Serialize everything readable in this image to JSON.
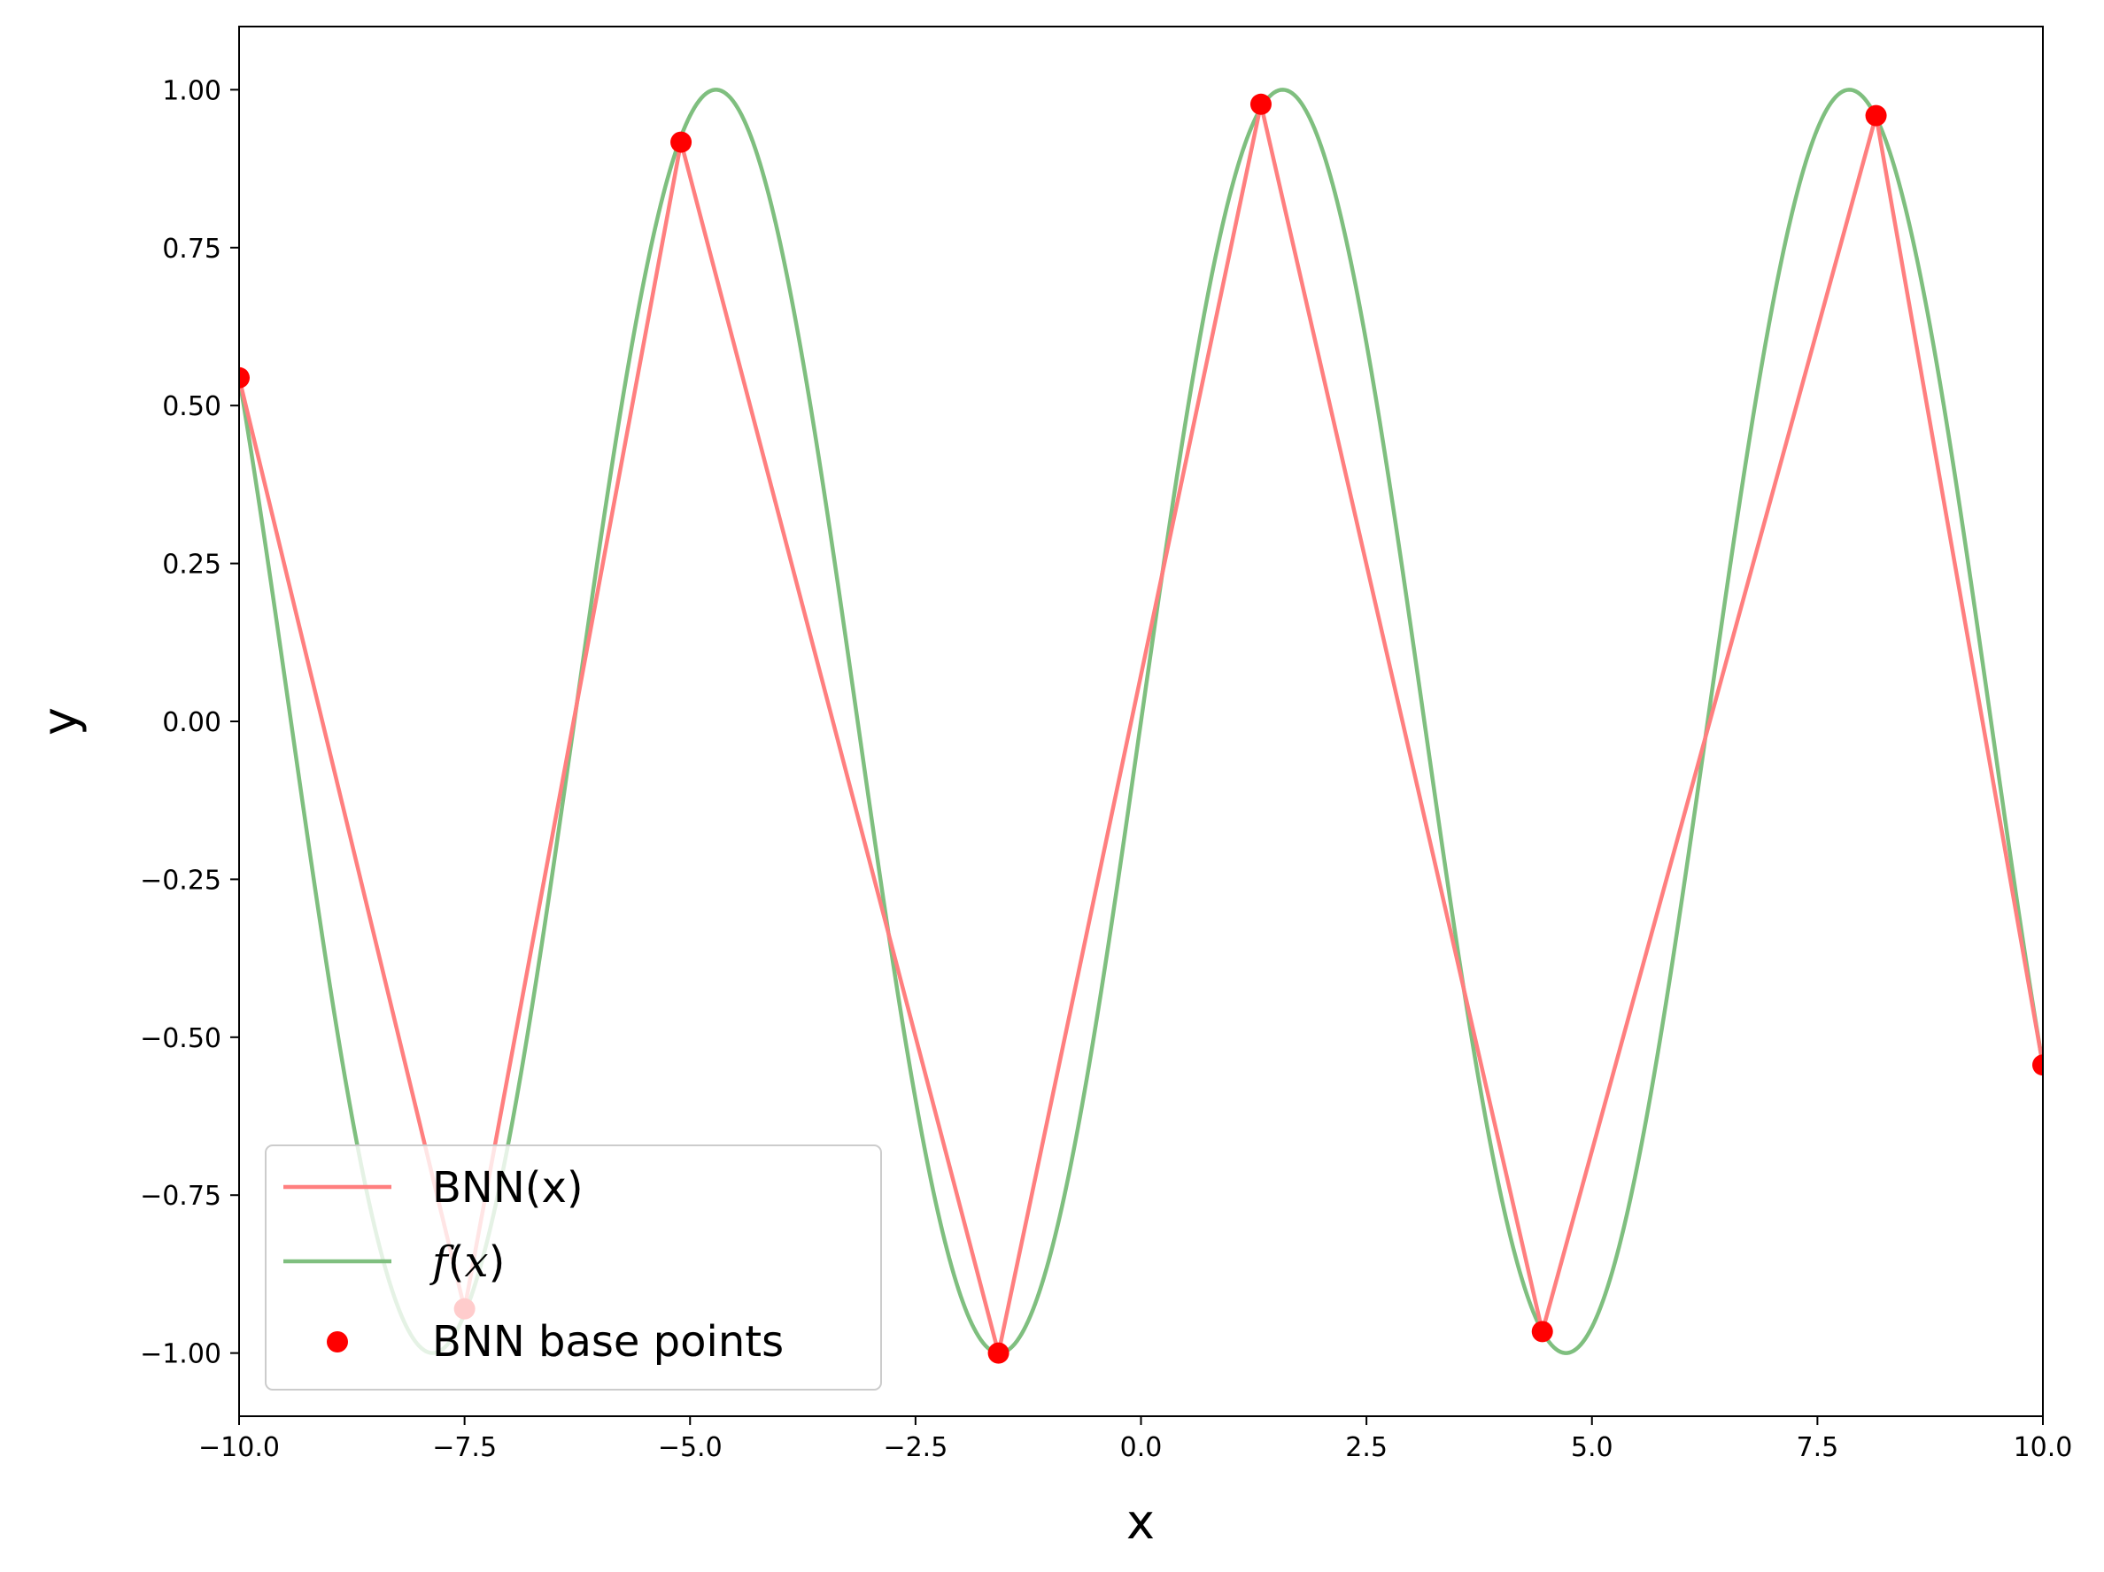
{
  "chart_data": {
    "type": "line",
    "xlabel": "x",
    "ylabel": "y",
    "xlim": [
      -10,
      10
    ],
    "ylim": [
      -1.1,
      1.1
    ],
    "x_ticks": [
      -10.0,
      -7.5,
      -5.0,
      -2.5,
      0.0,
      2.5,
      5.0,
      7.5,
      10.0
    ],
    "x_tick_labels": [
      "−10.0",
      "−7.5",
      "−5.0",
      "−2.5",
      "0.0",
      "2.5",
      "5.0",
      "7.5",
      "10.0"
    ],
    "y_ticks": [
      1.0,
      0.75,
      0.5,
      0.25,
      0.0,
      -0.25,
      -0.5,
      -0.75,
      -1.0
    ],
    "y_tick_labels": [
      "1.00",
      "0.75",
      "0.50",
      "0.25",
      "0.00",
      "−0.25",
      "−0.50",
      "−0.75",
      "−1.00"
    ],
    "grid": false,
    "legend_position": "lower-left",
    "series": [
      {
        "name": "BNN(x)",
        "kind": "line",
        "color": "#ff7f7f",
        "x": [
          -10.0,
          -7.5,
          -5.1,
          -1.58,
          1.33,
          4.45,
          8.15,
          10.0
        ],
        "y": [
          0.544,
          -0.93,
          0.917,
          -1.0,
          0.977,
          -0.966,
          0.959,
          -0.544
        ]
      },
      {
        "name": "f(x)",
        "kind": "function",
        "function": "sin(x)",
        "color": "#7fbf7f",
        "x_range": [
          -10,
          10
        ]
      },
      {
        "name": "BNN base points",
        "kind": "scatter",
        "color": "#ff0000",
        "x": [
          -10.0,
          -7.5,
          -5.1,
          -1.58,
          1.33,
          4.45,
          8.15,
          10.0
        ],
        "y": [
          0.544,
          -0.93,
          0.917,
          -1.0,
          0.977,
          -0.966,
          0.959,
          -0.544
        ]
      }
    ]
  }
}
